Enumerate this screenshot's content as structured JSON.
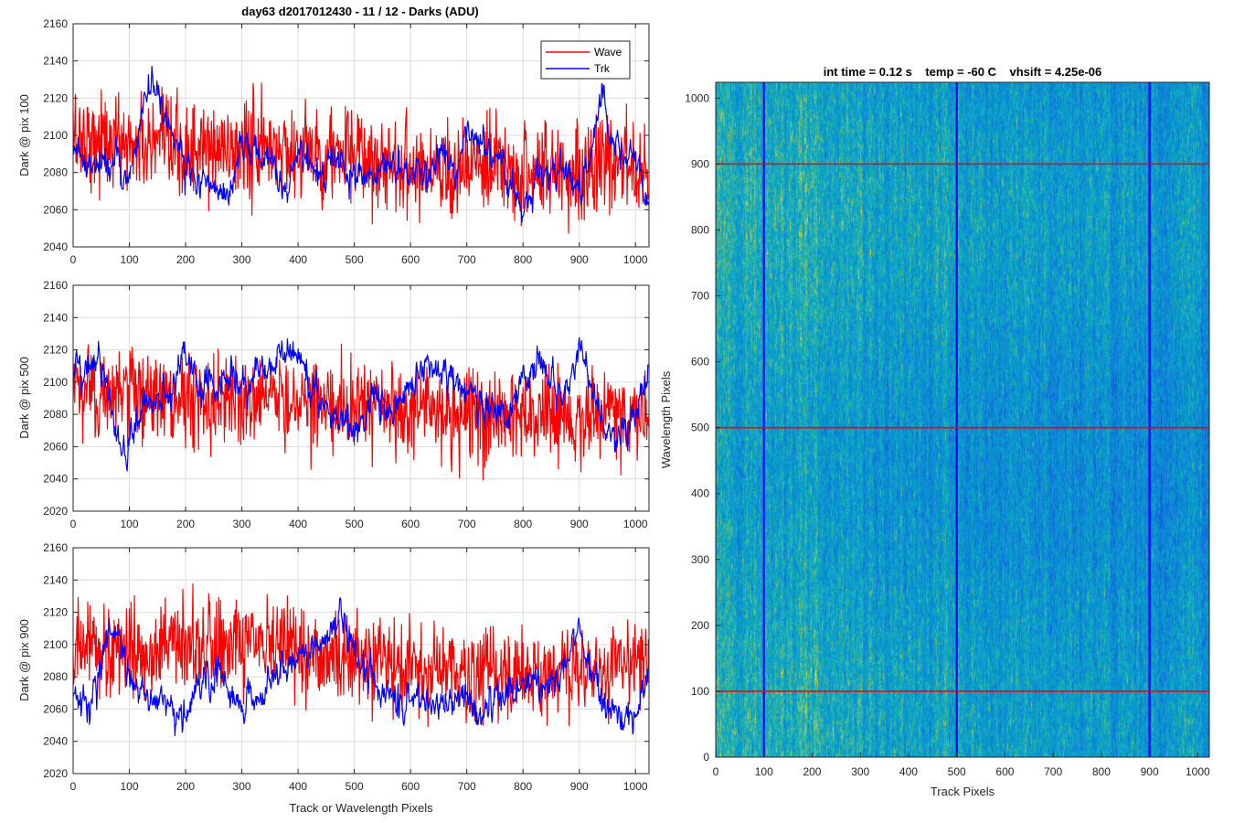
{
  "figure_title": "day63 d2017012430 - 11 / 12 - Darks (ADU)",
  "colors": {
    "wave": "#ff0000",
    "trk": "#0000ff",
    "grid": "#dcdcdc",
    "axis": "#262626"
  },
  "chart_data": [
    {
      "type": "line",
      "name": "pix100",
      "title": "day63 d2017012430 - 11 / 12 - Darks (ADU)",
      "ylabel": "Dark @ pix 100",
      "xlabel": "",
      "xlim": [
        0,
        1024
      ],
      "ylim": [
        2040,
        2160
      ],
      "xticks": [
        0,
        100,
        200,
        300,
        400,
        500,
        600,
        700,
        800,
        900,
        1000
      ],
      "yticks": [
        2040,
        2060,
        2080,
        2100,
        2120,
        2140,
        2160
      ],
      "grid": true,
      "legend": "top-right",
      "series": [
        {
          "name": "Wave",
          "color": "#ff0000",
          "mean": 2090,
          "spread": 13,
          "min": 2043,
          "max": 2144,
          "trend": [
            [
              0,
              2100
            ],
            [
              100,
              2095
            ],
            [
              200,
              2090
            ],
            [
              300,
              2093
            ],
            [
              400,
              2092
            ],
            [
              500,
              2088
            ],
            [
              600,
              2084
            ],
            [
              700,
              2082
            ],
            [
              800,
              2080
            ],
            [
              900,
              2082
            ],
            [
              1024,
              2085
            ]
          ]
        },
        {
          "name": "Trk",
          "color": "#0000ff",
          "spread": 5,
          "min": 2044,
          "max": 2141,
          "trend": [
            [
              0,
              2092
            ],
            [
              30,
              2080
            ],
            [
              70,
              2085
            ],
            [
              100,
              2078
            ],
            [
              140,
              2132
            ],
            [
              160,
              2112
            ],
            [
              200,
              2085
            ],
            [
              240,
              2072
            ],
            [
              280,
              2065
            ],
            [
              300,
              2095
            ],
            [
              340,
              2090
            ],
            [
              360,
              2080
            ],
            [
              380,
              2068
            ],
            [
              400,
              2095
            ],
            [
              440,
              2078
            ],
            [
              470,
              2085
            ],
            [
              490,
              2080
            ],
            [
              520,
              2077
            ],
            [
              560,
              2085
            ],
            [
              600,
              2080
            ],
            [
              640,
              2080
            ],
            [
              660,
              2095
            ],
            [
              680,
              2080
            ],
            [
              700,
              2102
            ],
            [
              720,
              2095
            ],
            [
              760,
              2088
            ],
            [
              800,
              2060
            ],
            [
              830,
              2080
            ],
            [
              870,
              2080
            ],
            [
              900,
              2070
            ],
            [
              920,
              2085
            ],
            [
              940,
              2125
            ],
            [
              960,
              2090
            ],
            [
              1000,
              2090
            ],
            [
              1024,
              2060
            ]
          ]
        }
      ]
    },
    {
      "type": "line",
      "name": "pix500",
      "title": "",
      "ylabel": "Dark @ pix 500",
      "xlabel": "",
      "xlim": [
        0,
        1024
      ],
      "ylim": [
        2020,
        2160
      ],
      "xticks": [
        0,
        100,
        200,
        300,
        400,
        500,
        600,
        700,
        800,
        900,
        1000
      ],
      "yticks": [
        2020,
        2040,
        2060,
        2080,
        2100,
        2120,
        2140,
        2160
      ],
      "grid": true,
      "series": [
        {
          "name": "Wave",
          "color": "#ff0000",
          "spread": 14,
          "min": 2037,
          "max": 2136,
          "trend": [
            [
              0,
              2095
            ],
            [
              100,
              2092
            ],
            [
              200,
              2090
            ],
            [
              300,
              2090
            ],
            [
              400,
              2090
            ],
            [
              500,
              2085
            ],
            [
              600,
              2082
            ],
            [
              700,
              2080
            ],
            [
              800,
              2078
            ],
            [
              900,
              2078
            ],
            [
              1024,
              2082
            ]
          ]
        },
        {
          "name": "Trk",
          "color": "#0000ff",
          "spread": 6,
          "min": 2040,
          "max": 2132,
          "trend": [
            [
              0,
              2105
            ],
            [
              40,
              2115
            ],
            [
              60,
              2098
            ],
            [
              80,
              2065
            ],
            [
              95,
              2055
            ],
            [
              120,
              2085
            ],
            [
              170,
              2095
            ],
            [
              200,
              2115
            ],
            [
              230,
              2095
            ],
            [
              270,
              2100
            ],
            [
              300,
              2095
            ],
            [
              330,
              2110
            ],
            [
              400,
              2120
            ],
            [
              430,
              2090
            ],
            [
              460,
              2082
            ],
            [
              500,
              2070
            ],
            [
              530,
              2090
            ],
            [
              560,
              2080
            ],
            [
              600,
              2095
            ],
            [
              620,
              2110
            ],
            [
              660,
              2108
            ],
            [
              700,
              2098
            ],
            [
              740,
              2082
            ],
            [
              780,
              2080
            ],
            [
              800,
              2103
            ],
            [
              830,
              2115
            ],
            [
              860,
              2090
            ],
            [
              880,
              2100
            ],
            [
              900,
              2120
            ],
            [
              930,
              2088
            ],
            [
              960,
              2060
            ],
            [
              1000,
              2082
            ],
            [
              1024,
              2110
            ]
          ]
        }
      ]
    },
    {
      "type": "line",
      "name": "pix900",
      "title": "",
      "ylabel": "Dark @ pix 900",
      "xlabel": "Track or Wavelength Pixels",
      "xlim": [
        0,
        1024
      ],
      "ylim": [
        2020,
        2160
      ],
      "xticks": [
        0,
        100,
        200,
        300,
        400,
        500,
        600,
        700,
        800,
        900,
        1000
      ],
      "yticks": [
        2020,
        2040,
        2060,
        2080,
        2100,
        2120,
        2140,
        2160
      ],
      "grid": true,
      "series": [
        {
          "name": "Wave",
          "color": "#ff0000",
          "spread": 14,
          "min": 2048,
          "max": 2143,
          "trend": [
            [
              0,
              2098
            ],
            [
              100,
              2096
            ],
            [
              200,
              2098
            ],
            [
              300,
              2100
            ],
            [
              400,
              2096
            ],
            [
              500,
              2090
            ],
            [
              600,
              2085
            ],
            [
              700,
              2082
            ],
            [
              800,
              2080
            ],
            [
              900,
              2083
            ],
            [
              1024,
              2090
            ]
          ]
        },
        {
          "name": "Trk",
          "color": "#0000ff",
          "spread": 6,
          "min": 2033,
          "max": 2129,
          "trend": [
            [
              0,
              2065
            ],
            [
              30,
              2063
            ],
            [
              60,
              2105
            ],
            [
              80,
              2105
            ],
            [
              100,
              2080
            ],
            [
              140,
              2058
            ],
            [
              160,
              2072
            ],
            [
              190,
              2050
            ],
            [
              220,
              2075
            ],
            [
              260,
              2085
            ],
            [
              290,
              2060
            ],
            [
              320,
              2068
            ],
            [
              360,
              2082
            ],
            [
              400,
              2090
            ],
            [
              440,
              2098
            ],
            [
              480,
              2122
            ],
            [
              500,
              2095
            ],
            [
              540,
              2075
            ],
            [
              580,
              2065
            ],
            [
              640,
              2065
            ],
            [
              700,
              2068
            ],
            [
              720,
              2055
            ],
            [
              760,
              2065
            ],
            [
              800,
              2075
            ],
            [
              860,
              2075
            ],
            [
              900,
              2110
            ],
            [
              940,
              2065
            ],
            [
              980,
              2052
            ],
            [
              1000,
              2058
            ],
            [
              1024,
              2085
            ]
          ]
        }
      ]
    },
    {
      "type": "heatmap",
      "name": "dark-frame",
      "title": "int time = 0.12 s    temp = -60 C    vhsift = 4.25e-06",
      "xlabel": "Track Pixels",
      "ylabel": "Wavelength Pixels",
      "xlim": [
        0,
        1024
      ],
      "ylim": [
        0,
        1024
      ],
      "xticks": [
        0,
        100,
        200,
        300,
        400,
        500,
        600,
        700,
        800,
        900,
        1000
      ],
      "yticks": [
        0,
        100,
        200,
        300,
        400,
        500,
        600,
        700,
        800,
        900,
        1000
      ],
      "colormap": "parula",
      "markers": {
        "vertical_track_pixels": [
          100,
          500,
          900
        ],
        "vertical_color": "#0000ff",
        "horizontal_wavelength_pixels": [
          100,
          500,
          900
        ],
        "horizontal_color": "#ff0000"
      }
    }
  ]
}
